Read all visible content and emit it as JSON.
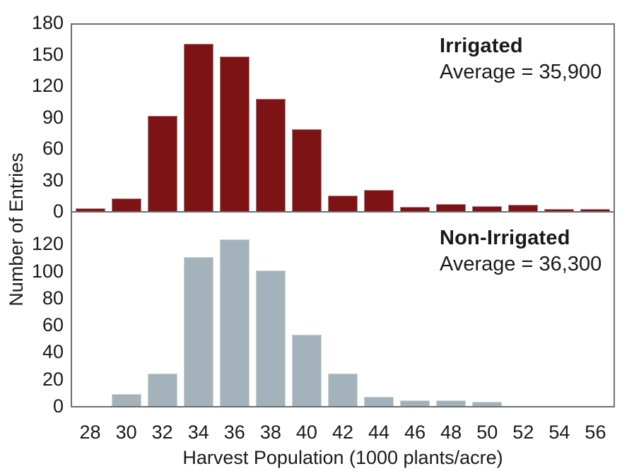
{
  "chart_data": {
    "type": "bar",
    "title": "",
    "xlabel": "Harvest Population (1000 plants/acre)",
    "ylabel": "Number of Entries",
    "categories": [
      "28",
      "30",
      "32",
      "34",
      "36",
      "38",
      "40",
      "42",
      "44",
      "46",
      "48",
      "50",
      "52",
      "54",
      "56"
    ],
    "grid": false,
    "legend_position": "top-right-inside",
    "axis_color": "#6d6e71",
    "text_color": "#1a1a1a",
    "panels": [
      {
        "id": "irrigated",
        "label": "Irrigated",
        "average_text": "Average = 35,900",
        "average": 35900,
        "bar_color": "#7e1316",
        "ylim": [
          0,
          180
        ],
        "yticks": [
          0,
          30,
          60,
          90,
          120,
          150,
          180
        ],
        "values": [
          3,
          12,
          91,
          160,
          148,
          107,
          78,
          15,
          20,
          4,
          7,
          5,
          6,
          2,
          2
        ]
      },
      {
        "id": "non-irrigated",
        "label": "Non-Irrigated",
        "average_text": "Average = 36,300",
        "average": 36300,
        "bar_color": "#a3b2bb",
        "ylim": [
          0,
          120
        ],
        "yticks": [
          0,
          20,
          40,
          60,
          80,
          100,
          120
        ],
        "values": [
          0,
          9,
          24,
          110,
          123,
          100,
          53,
          24,
          7,
          4,
          4,
          3,
          0,
          0,
          0
        ]
      }
    ]
  }
}
